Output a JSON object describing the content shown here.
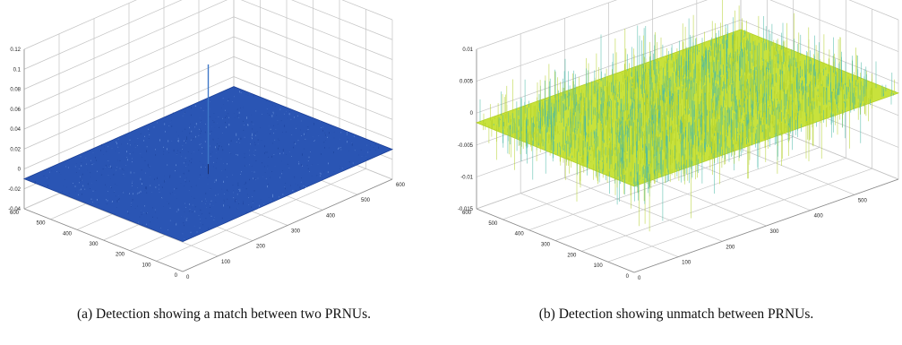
{
  "chart_data": [
    {
      "type": "surface",
      "caption": "(a) Detection showing a match between two PRNUs.",
      "z_ticks": [
        "0.12",
        "0.1",
        "0.08",
        "0.06",
        "0.04",
        "0.02",
        "0",
        "-0.02",
        "-0.04"
      ],
      "zlim": [
        -0.04,
        0.12
      ],
      "x_ticks": [
        "0",
        "100",
        "200",
        "300",
        "400",
        "500",
        "600"
      ],
      "y_ticks": [
        "0",
        "100",
        "200",
        "300",
        "400",
        "500",
        "600"
      ],
      "xlim": [
        0,
        600
      ],
      "ylim": [
        0,
        600
      ],
      "grid": true,
      "surface_color": "#2a55b4",
      "surface_edge": "#1b3f96",
      "surface_noise": "#7fa6e6",
      "floor_level": -0.01,
      "noise_amplitude": 0.002,
      "peak": {
        "x": 300,
        "y": 300,
        "z": 0.09
      }
    },
    {
      "type": "surface",
      "caption": "(b) Detection showing unmatch between PRNUs.",
      "z_ticks": [
        "0.01",
        "0.005",
        "0",
        "-0.005",
        "-0.01",
        "-0.015"
      ],
      "zlim": [
        -0.015,
        0.01
      ],
      "x_ticks": [
        "0",
        "100",
        "200",
        "300",
        "400",
        "500",
        "600"
      ],
      "y_ticks": [
        "0",
        "100",
        "200",
        "300",
        "400",
        "500",
        "600"
      ],
      "xlim": [
        0,
        600
      ],
      "ylim": [
        0,
        600
      ],
      "grid": true,
      "surface_color": "#c8e23c",
      "surface_edge": "#b3d02a",
      "surface_noise": "#48b8a6",
      "floor_level": -0.0015,
      "noise_amplitude": 0.006,
      "peak": null
    }
  ]
}
